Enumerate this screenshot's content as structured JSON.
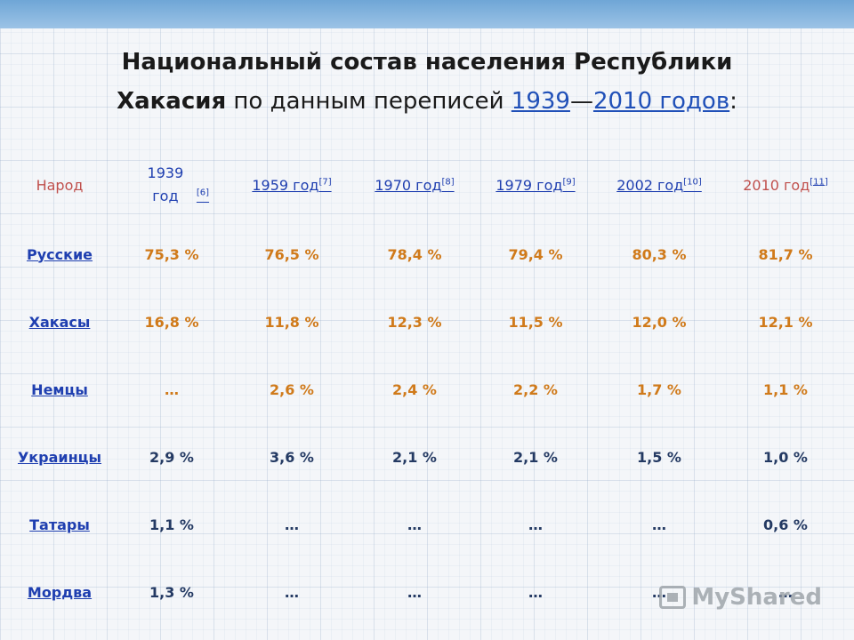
{
  "title": {
    "line1": "Национальный состав населения Республики",
    "line2_bold": "Хакасия",
    "line2_text": " по данным переписей ",
    "link1": "1939",
    "dash": "—",
    "link2": "2010 годов",
    "colon": ":"
  },
  "table": {
    "headers": [
      {
        "label": "Народ",
        "ref": ""
      },
      {
        "label": "1939 год",
        "ref": "[6]"
      },
      {
        "label": "1959 год",
        "ref": "[7]"
      },
      {
        "label": "1970 год",
        "ref": "[8]"
      },
      {
        "label": "1979 год",
        "ref": "[9]"
      },
      {
        "label": "2002 год",
        "ref": "[10]"
      },
      {
        "label": "2010 год",
        "ref": "[11]"
      }
    ],
    "rows": [
      {
        "name": "Русские",
        "values": [
          "75,3 %",
          "76,5 %",
          "78,4 %",
          "79,4 %",
          "80,3 %",
          "81,7 %"
        ]
      },
      {
        "name": "Хакасы",
        "values": [
          "16,8 %",
          "11,8 %",
          "12,3 %",
          "11,5 %",
          "12,0 %",
          "12,1 %"
        ]
      },
      {
        "name": "Немцы",
        "values": [
          "…",
          "2,6 %",
          "2,4 %",
          "2,2 %",
          "1,7 %",
          "1,1 %"
        ]
      },
      {
        "name": "Украинцы",
        "values": [
          "2,9 %",
          "3,6 %",
          "2,1 %",
          "2,1 %",
          "1,5 %",
          "1,0 %"
        ]
      },
      {
        "name": "Татары",
        "values": [
          "1,1 %",
          "…",
          "…",
          "…",
          "…",
          "0,6 %"
        ]
      },
      {
        "name": "Мордва",
        "values": [
          "1,3 %",
          "…",
          "…",
          "…",
          "…",
          "…"
        ]
      }
    ]
  },
  "watermark": {
    "text": "MyShared",
    "icon": "projector-icon"
  },
  "colors": {
    "header_accent": "#c0504d",
    "link": "#1f3fb0",
    "orange_values": "#d07a1a",
    "navy_values": "#243a63",
    "top_band": "#6fa6d6"
  }
}
